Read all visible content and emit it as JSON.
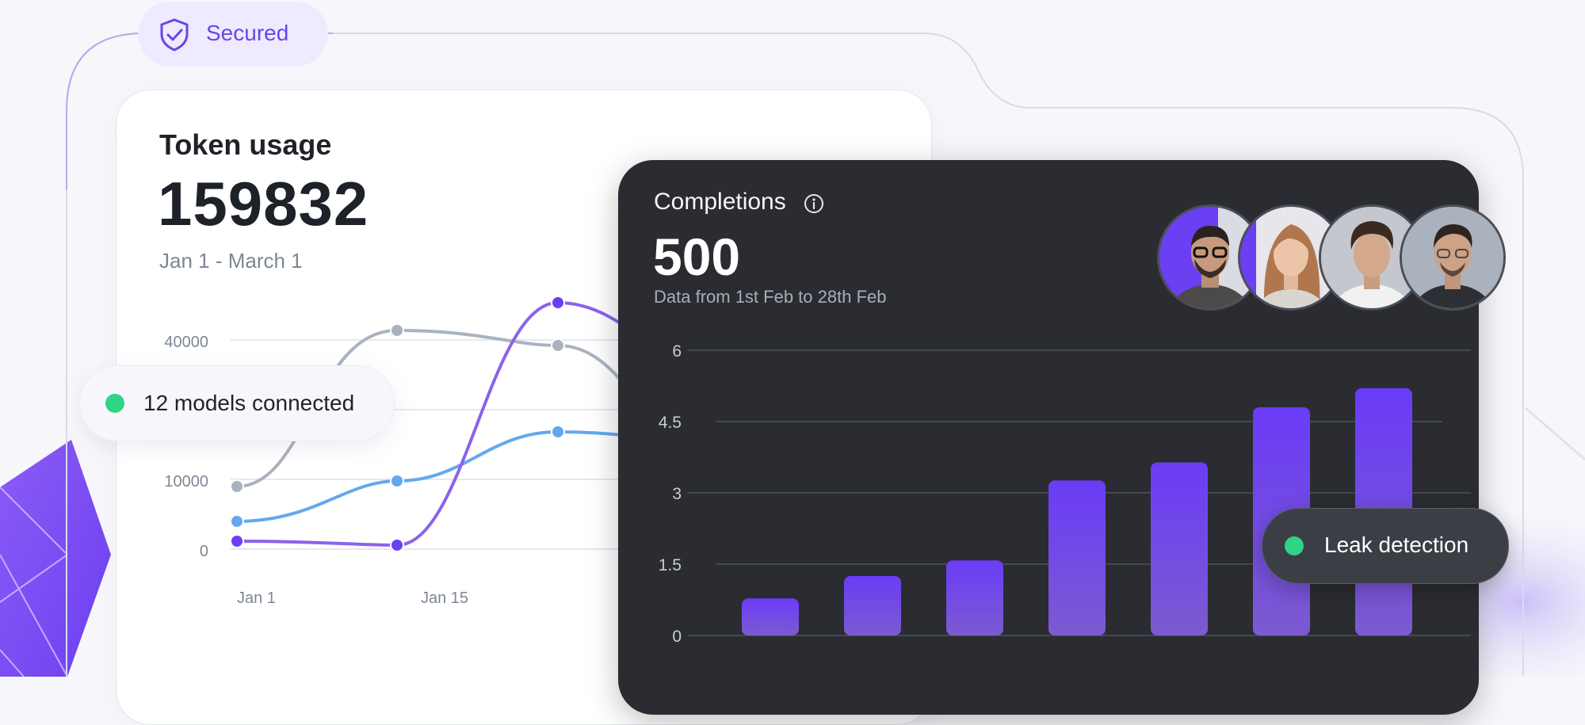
{
  "badges": {
    "secured": "Secured",
    "models_connected": "12 models connected",
    "leak_detection": "Leak detection"
  },
  "token_usage": {
    "title": "Token usage",
    "value": "159832",
    "range": "Jan 1 - March 1"
  },
  "completions": {
    "title": "Completions",
    "value": "500",
    "subtitle": "Data from 1st Feb to 28th Feb"
  },
  "avatars": [
    {
      "name": "avatar-man-glasses",
      "ring": "#6b3ff2"
    },
    {
      "name": "avatar-woman",
      "ring": "#6b3ff2"
    },
    {
      "name": "avatar-man-curly",
      "ring": "#9aa3b0"
    },
    {
      "name": "avatar-man-smiling",
      "ring": "#9aa3b0"
    }
  ],
  "colors": {
    "accent": "#6b3ff2",
    "green": "#2fd486",
    "series_gray": "#a9b3bf",
    "series_blue": "#63a8ee",
    "series_purple": "#8a63ec",
    "dark_card": "#2a2c31"
  },
  "chart_data": [
    {
      "type": "line",
      "title": "Token usage",
      "x_ticks": [
        "Jan 1",
        "Jan 15"
      ],
      "y_ticks": [
        "0",
        "10000",
        "40000"
      ],
      "series": [
        {
          "name": "gray",
          "color": "#a9b3bf",
          "values": [
            9000,
            42000,
            39000
          ]
        },
        {
          "name": "blue",
          "color": "#63a8ee",
          "values": [
            4000,
            10000,
            22000
          ]
        },
        {
          "name": "purple",
          "color": "#8a63ec",
          "values": [
            1200,
            500,
            48000
          ]
        }
      ]
    },
    {
      "type": "bar",
      "title": "Completions",
      "y_ticks": [
        "0",
        "1.5",
        "3",
        "4.5",
        "6"
      ],
      "ylim": [
        0,
        6
      ],
      "values": [
        0.78,
        1.25,
        1.58,
        3.26,
        3.64,
        4.8,
        5.2
      ]
    }
  ]
}
